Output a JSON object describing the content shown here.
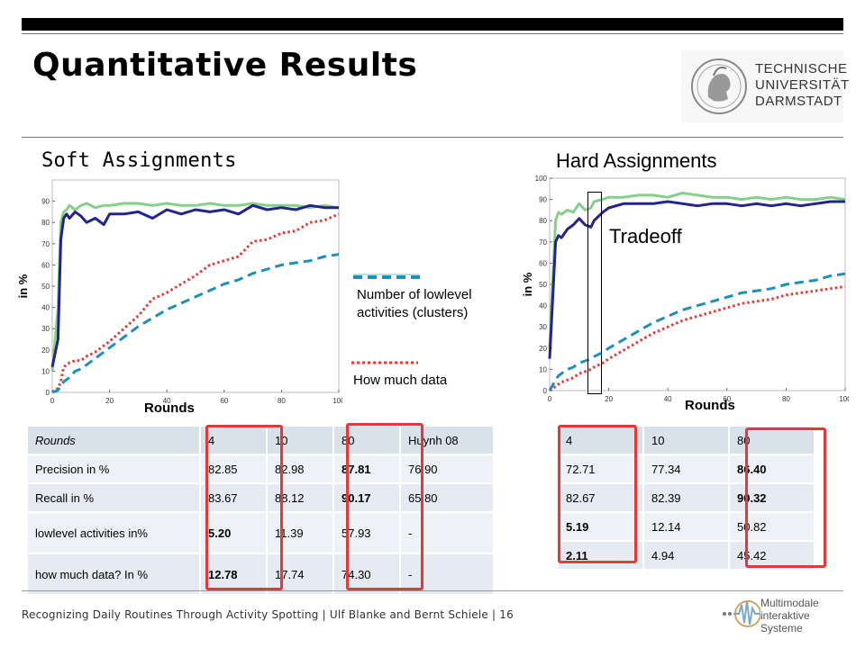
{
  "slide_title": "Quantitative Results",
  "university": {
    "line1": "TECHNISCHE",
    "line2": "UNIVERSITÄT",
    "line3": "DARMSTADT"
  },
  "soft_label": "Soft Assignments",
  "hard_label": "Hard Assignments",
  "tradeoff_label": "Tradeoff",
  "legend": {
    "clusters_line1": "Number of lowlevel",
    "clusters_line2": "activities (clusters)",
    "data": "How much data"
  },
  "colors": {
    "green": "#86cf8a",
    "navy": "#23238c",
    "teal": "#1f8fb8",
    "red": "#e23a36"
  },
  "chart_data": [
    {
      "type": "line",
      "xlabel": "Rounds",
      "ylabel": "in %",
      "xlim": [
        0,
        100
      ],
      "ylim": [
        0,
        100
      ],
      "xticks": [
        "0",
        "20",
        "40",
        "60",
        "80",
        "100"
      ],
      "yticks": [
        "0",
        "10",
        "20",
        "30",
        "40",
        "50",
        "60",
        "70",
        "80",
        "90"
      ],
      "x": [
        0,
        2,
        3,
        4,
        5,
        6,
        8,
        10,
        12,
        15,
        18,
        20,
        25,
        30,
        35,
        40,
        45,
        50,
        55,
        60,
        65,
        70,
        75,
        80,
        85,
        90,
        95,
        100
      ],
      "series": [
        {
          "color": "green",
          "style": "solid",
          "values": [
            10,
            40,
            80,
            85,
            86,
            88,
            86,
            88,
            89,
            87,
            88,
            88,
            89,
            89,
            88,
            89,
            88,
            88,
            89,
            88,
            88,
            89,
            88,
            88,
            88,
            87,
            88,
            87
          ]
        },
        {
          "color": "navy",
          "style": "solid",
          "values": [
            12,
            25,
            72,
            82,
            84,
            82,
            85,
            83,
            80,
            82,
            79,
            84,
            84,
            85,
            82,
            86,
            84,
            86,
            85,
            86,
            84,
            88,
            86,
            87,
            86,
            88,
            87,
            87
          ]
        },
        {
          "color": "teal",
          "style": "dashed",
          "values": [
            0,
            1,
            3,
            5,
            6,
            7,
            10,
            11,
            13,
            16,
            19,
            21,
            26,
            31,
            35,
            39,
            42,
            45,
            48,
            51,
            53,
            56,
            58,
            60,
            61,
            62,
            64,
            65
          ]
        },
        {
          "color": "red",
          "style": "dotted",
          "values": [
            0,
            2,
            5,
            12,
            13,
            14,
            15,
            15,
            17,
            19,
            22,
            24,
            30,
            36,
            44,
            47,
            51,
            55,
            60,
            62,
            64,
            71,
            72,
            75,
            76,
            80,
            81,
            84
          ]
        }
      ]
    },
    {
      "type": "line",
      "xlabel": "Rounds",
      "ylabel": "in %",
      "xlim": [
        0,
        100
      ],
      "ylim": [
        0,
        100
      ],
      "xticks": [
        "0",
        "20",
        "40",
        "60",
        "80",
        "100"
      ],
      "yticks": [
        "0",
        "10",
        "20",
        "30",
        "40",
        "50",
        "60",
        "70",
        "80",
        "90",
        "100"
      ],
      "x": [
        0,
        2,
        3,
        4,
        6,
        8,
        10,
        12,
        14,
        15,
        18,
        20,
        25,
        30,
        35,
        40,
        45,
        50,
        55,
        60,
        65,
        70,
        75,
        80,
        85,
        90,
        95,
        100
      ],
      "series": [
        {
          "color": "green",
          "style": "solid",
          "values": [
            20,
            80,
            84,
            83,
            85,
            84,
            88,
            85,
            86,
            89,
            90,
            91,
            91,
            92,
            92,
            91,
            93,
            92,
            91,
            91,
            90,
            91,
            90,
            91,
            90,
            90,
            91,
            90
          ]
        },
        {
          "color": "navy",
          "style": "solid",
          "values": [
            15,
            70,
            73,
            72,
            76,
            78,
            81,
            78,
            77,
            80,
            84,
            86,
            88,
            88,
            88,
            89,
            88,
            87,
            88,
            88,
            87,
            88,
            87,
            88,
            87,
            88,
            89,
            89
          ]
        },
        {
          "color": "teal",
          "style": "dashed",
          "values": [
            0,
            5,
            7,
            8,
            10,
            11,
            13,
            14,
            15,
            16,
            18,
            20,
            24,
            28,
            32,
            35,
            38,
            40,
            42,
            44,
            46,
            47,
            48,
            50,
            51,
            52,
            54,
            55
          ]
        },
        {
          "color": "red",
          "style": "dotted",
          "values": [
            0,
            2,
            3,
            4,
            5,
            6,
            8,
            9,
            10,
            11,
            13,
            15,
            19,
            23,
            27,
            30,
            33,
            35,
            37,
            39,
            41,
            42,
            43,
            45,
            46,
            47,
            48,
            49
          ]
        }
      ]
    }
  ],
  "soft_table": {
    "rows": [
      [
        "Rounds",
        "4",
        "10",
        "80",
        "Huynh 08"
      ],
      [
        "Precision in %",
        "82.85",
        "82.98",
        "87.81",
        "76.90"
      ],
      [
        "Recall in %",
        "83.67",
        "88.12",
        "90.17",
        "65.80"
      ],
      [
        "lowlevel activities in%",
        "5.20",
        "11.39",
        "57.93",
        "-"
      ],
      [
        "how much data? In %",
        "12.78",
        "17.74",
        "74.30",
        "-"
      ]
    ]
  },
  "hard_table": {
    "rows": [
      [
        "4",
        "10",
        "80"
      ],
      [
        "72.71",
        "77.34",
        "86.40"
      ],
      [
        "82.67",
        "82.39",
        "90.32"
      ],
      [
        "5.19",
        "12.14",
        "50.82"
      ],
      [
        "2.11",
        "4.94",
        "45.42"
      ]
    ]
  },
  "footer": "Recognizing Daily Routines Through Activity Spotting  |  Ulf Blanke and Bernt Schiele  |  16",
  "mm_logo": {
    "line1": "Multimodale",
    "line2": "interaktive",
    "line3": "Systeme"
  }
}
